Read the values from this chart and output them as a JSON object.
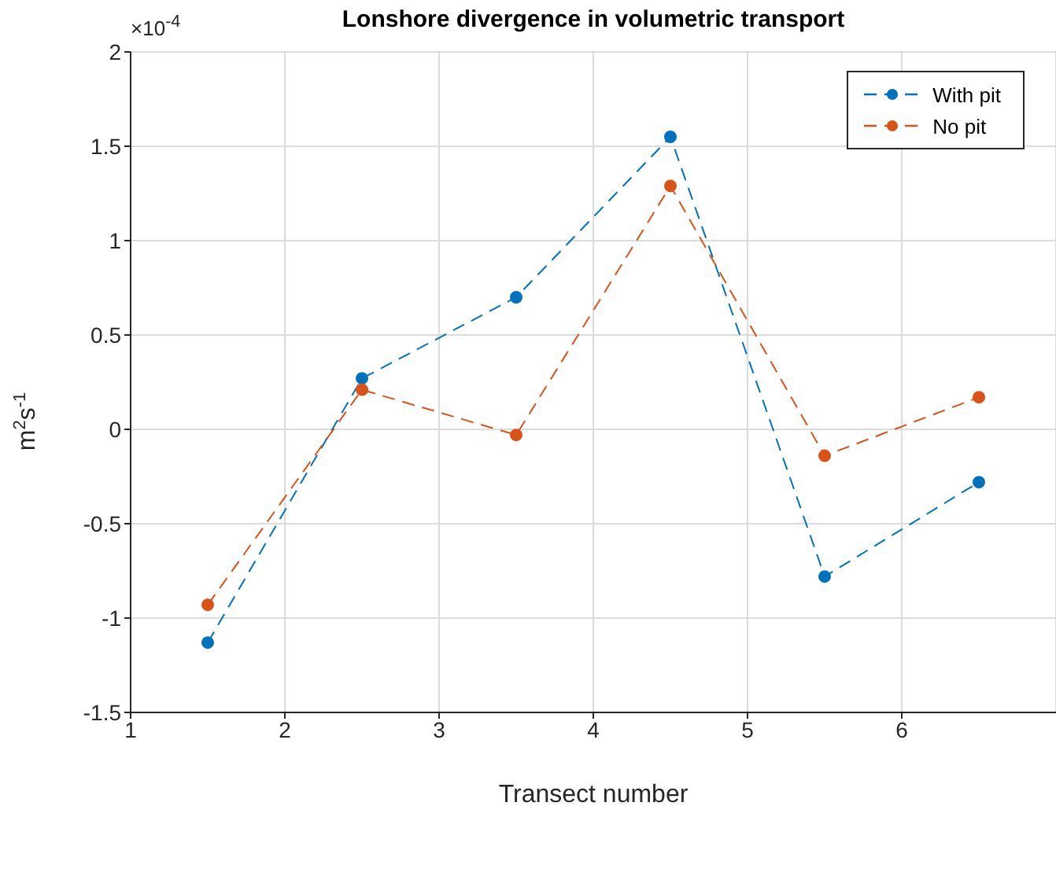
{
  "chart_data": {
    "type": "line",
    "title": "Lonshore divergence in volumetric transport",
    "xlabel": "Transect number",
    "ylabel": "m$^{2}$s$^{-1}$",
    "annotations": [
      "×10$^{-4}$"
    ],
    "x": [
      1.5,
      2.5,
      3.5,
      4.5,
      5.5,
      6.5
    ],
    "series": [
      {
        "name": "With pit",
        "color": "#0072bd",
        "values": [
          -1.13,
          0.27,
          0.7,
          1.55,
          -0.78,
          -0.28
        ]
      },
      {
        "name": "No pit",
        "color": "#d95319",
        "values": [
          -0.93,
          0.21,
          -0.03,
          1.29,
          -0.14,
          0.17
        ]
      }
    ],
    "xlim": [
      1,
      7
    ],
    "xticks": [
      1,
      2,
      3,
      4,
      5,
      6
    ],
    "ylim": [
      -1.5,
      2
    ],
    "yticks": [
      -1.5,
      -1,
      -0.5,
      0,
      0.5,
      1,
      1.5,
      2
    ],
    "grid": true,
    "legend": "top right",
    "marker": "circle",
    "line_style": "dashed"
  }
}
